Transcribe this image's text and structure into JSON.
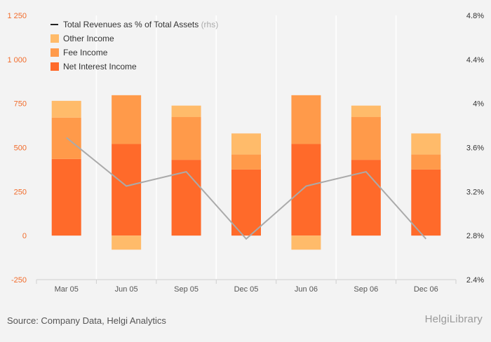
{
  "chart_data": {
    "type": "bar",
    "stacked": true,
    "categories": [
      "Mar 05",
      "Jun 05",
      "Sep 05",
      "Dec 05",
      "Jun 06",
      "Sep 06",
      "Dec 06"
    ],
    "series": [
      {
        "name": "Net Interest Income",
        "type": "bar",
        "axis": "left",
        "color": "#ff6a2a",
        "values": [
          435,
          520,
          430,
          375,
          520,
          430,
          375
        ]
      },
      {
        "name": "Fee Income",
        "type": "bar",
        "axis": "left",
        "color": "#ff9a4a",
        "values": [
          235,
          277,
          243,
          85,
          277,
          243,
          85
        ]
      },
      {
        "name": "Other Income",
        "type": "bar",
        "axis": "left",
        "color": "#ffbb6a",
        "values": [
          95,
          -80,
          65,
          120,
          -80,
          65,
          120
        ]
      },
      {
        "name": "Total Revenues as % of Total Assets",
        "name_suffix": "(rhs)",
        "type": "line",
        "axis": "right",
        "color": "#aaaaaa",
        "values": [
          3.69,
          3.25,
          3.38,
          2.77,
          3.25,
          3.38,
          2.77
        ]
      }
    ],
    "y_left": {
      "range": [
        -250,
        1250
      ],
      "ticks": [
        -250,
        0,
        250,
        500,
        750,
        1000,
        1250
      ],
      "tick_labels": [
        "-250",
        "0",
        "250",
        "500",
        "750",
        "1 000",
        "1 250"
      ],
      "color": "#f26b2a"
    },
    "y_right": {
      "range": [
        2.4,
        4.8
      ],
      "ticks": [
        2.4,
        2.8,
        3.2,
        3.6,
        4.0,
        4.4,
        4.8
      ],
      "tick_labels": [
        "2.4%",
        "2.8%",
        "3.2%",
        "3.6%",
        "4%",
        "4.4%",
        "4.8%"
      ]
    },
    "legend_position": "top-left",
    "grid": "vertical"
  },
  "footer": {
    "source": "Source: Company Data, Helgi Analytics",
    "brand": "HelgiLibrary"
  }
}
